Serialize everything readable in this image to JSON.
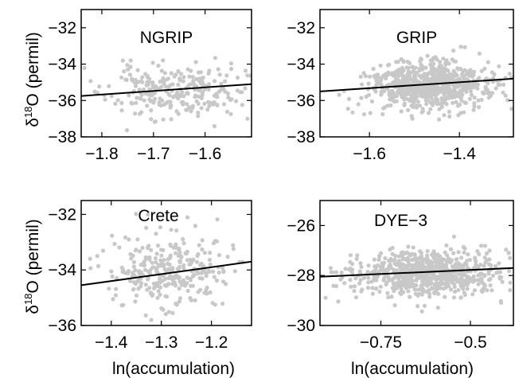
{
  "figure": {
    "ylabel_prefix": "δ",
    "ylabel_sup": "18",
    "ylabel_suffix": "O (permil)",
    "xlabel": "ln(accumulation)"
  },
  "colors": {
    "points": "#c8c8c8",
    "fit_line": "#000000",
    "axes": "#000000"
  },
  "chart_data": [
    {
      "type": "scatter",
      "title": "NGRIP",
      "xlabel": "",
      "ylabel": "δ18O (permil)",
      "xlim": [
        -1.84,
        -1.51
      ],
      "ylim": [
        -38,
        -31
      ],
      "xticks": [
        -1.8,
        -1.7,
        -1.6
      ],
      "xtick_labels": [
        "−1.8",
        "−1.7",
        "−1.6"
      ],
      "yticks": [
        -38,
        -36,
        -34,
        -32
      ],
      "ytick_labels": [
        "−38",
        "−36",
        "−34",
        "−32"
      ],
      "points_count": 260,
      "x_center": -1.66,
      "x_spread": 0.065,
      "y_center": -35.5,
      "y_spread": 0.75,
      "fit": {
        "x": [
          -1.84,
          -1.51
        ],
        "y": [
          -35.75,
          -35.1
        ]
      },
      "seed": 11
    },
    {
      "type": "scatter",
      "title": "GRIP",
      "xlabel": "",
      "ylabel": "",
      "xlim": [
        -1.71,
        -1.28
      ],
      "ylim": [
        -38,
        -31
      ],
      "xticks": [
        -1.6,
        -1.4
      ],
      "xtick_labels": [
        "−1.6",
        "−1.4"
      ],
      "yticks": [
        -38,
        -36,
        -34,
        -32
      ],
      "ytick_labels": [
        "−38",
        "−36",
        "−34",
        "−32"
      ],
      "points_count": 700,
      "x_center": -1.47,
      "x_spread": 0.065,
      "y_center": -35.2,
      "y_spread": 0.65,
      "fit": {
        "x": [
          -1.71,
          -1.28
        ],
        "y": [
          -35.5,
          -34.8
        ]
      },
      "seed": 23
    },
    {
      "type": "scatter",
      "title": "Crete",
      "xlabel": "ln(accumulation)",
      "ylabel": "δ18O (permil)",
      "xlim": [
        -1.46,
        -1.12
      ],
      "ylim": [
        -36,
        -31.5
      ],
      "xticks": [
        -1.4,
        -1.3,
        -1.2
      ],
      "xtick_labels": [
        "−1.4",
        "−1.3",
        "−1.2"
      ],
      "yticks": [
        -36,
        -34,
        -32
      ],
      "ytick_labels": [
        "−36",
        "−34",
        "−32"
      ],
      "points_count": 300,
      "x_center": -1.28,
      "x_spread": 0.06,
      "y_center": -34.0,
      "y_spread": 0.65,
      "fit": {
        "x": [
          -1.46,
          -1.12
        ],
        "y": [
          -34.55,
          -33.7
        ]
      },
      "seed": 37
    },
    {
      "type": "scatter",
      "title": "DYE−3",
      "xlabel": "ln(accumulation)",
      "ylabel": "",
      "xlim": [
        -0.92,
        -0.38
      ],
      "ylim": [
        -30,
        -25
      ],
      "xticks": [
        -0.75,
        -0.5
      ],
      "xtick_labels": [
        "−0.75",
        "−0.5"
      ],
      "yticks": [
        -30,
        -28,
        -26
      ],
      "ytick_labels": [
        "−30",
        "−28",
        "−26"
      ],
      "points_count": 750,
      "x_center": -0.62,
      "x_spread": 0.1,
      "y_center": -27.9,
      "y_spread": 0.45,
      "fit": {
        "x": [
          -0.92,
          -0.38
        ],
        "y": [
          -28.05,
          -27.7
        ]
      },
      "seed": 53
    }
  ]
}
